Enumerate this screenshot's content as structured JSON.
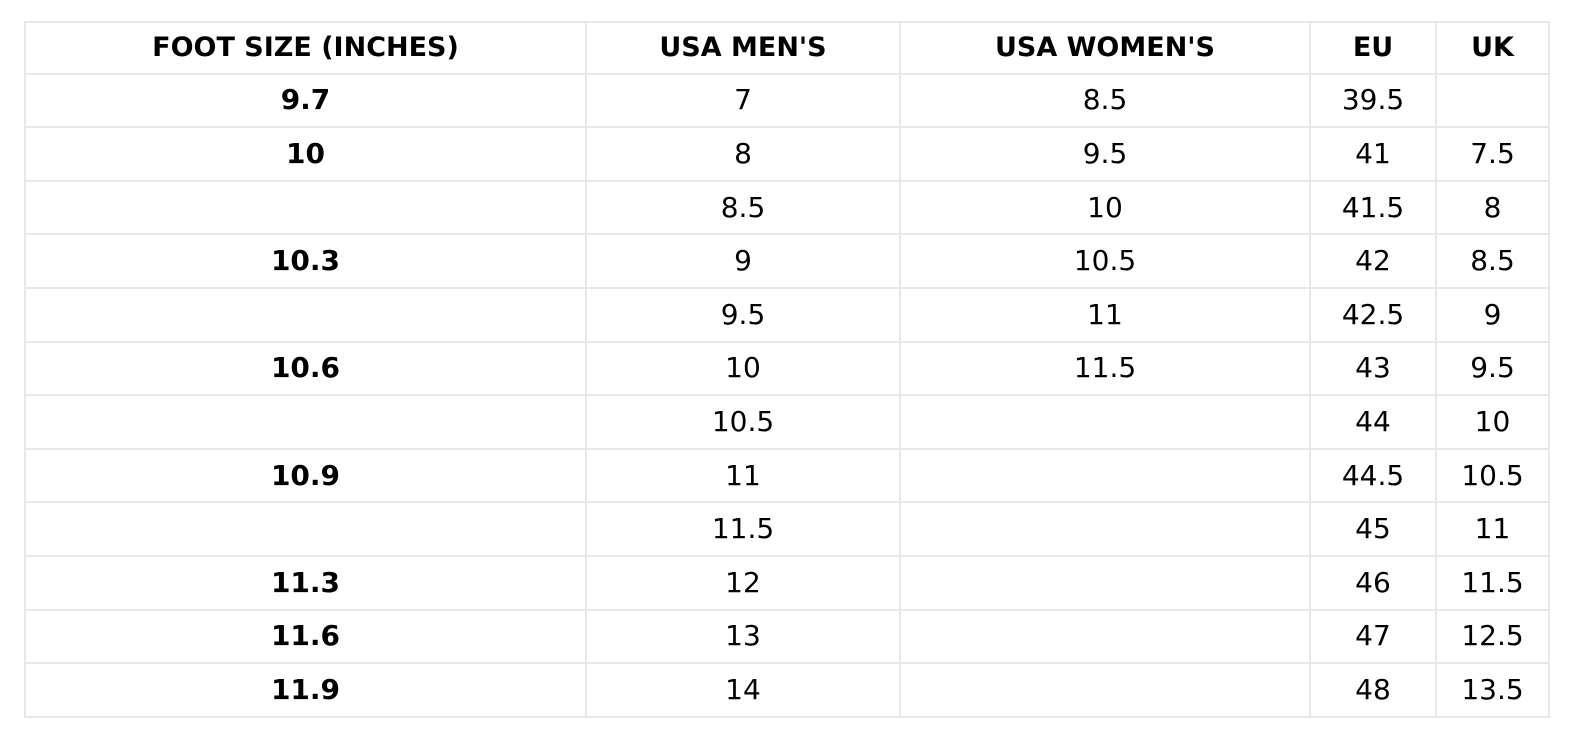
{
  "table": {
    "headers": [
      "FOOT SIZE (INCHES)",
      "USA MEN'S",
      "USA WOMEN'S",
      "EU",
      "UK"
    ],
    "rows": [
      [
        "9.7",
        "7",
        "8.5",
        "39.5",
        ""
      ],
      [
        "10",
        "8",
        "9.5",
        "41",
        "7.5"
      ],
      [
        "",
        "8.5",
        "10",
        "41.5",
        "8"
      ],
      [
        "10.3",
        "9",
        "10.5",
        "42",
        "8.5"
      ],
      [
        "",
        "9.5",
        "11",
        "42.5",
        "9"
      ],
      [
        "10.6",
        "10",
        "11.5",
        "43",
        "9.5"
      ],
      [
        "",
        "10.5",
        "",
        "44",
        "10"
      ],
      [
        "10.9",
        "11",
        "",
        "44.5",
        "10.5"
      ],
      [
        "",
        "11.5",
        "",
        "45",
        "11"
      ],
      [
        "11.3",
        "12",
        "",
        "46",
        "11.5"
      ],
      [
        "11.6",
        "13",
        "",
        "47",
        "12.5"
      ],
      [
        "11.9",
        "14",
        "",
        "48",
        "13.5"
      ]
    ]
  }
}
